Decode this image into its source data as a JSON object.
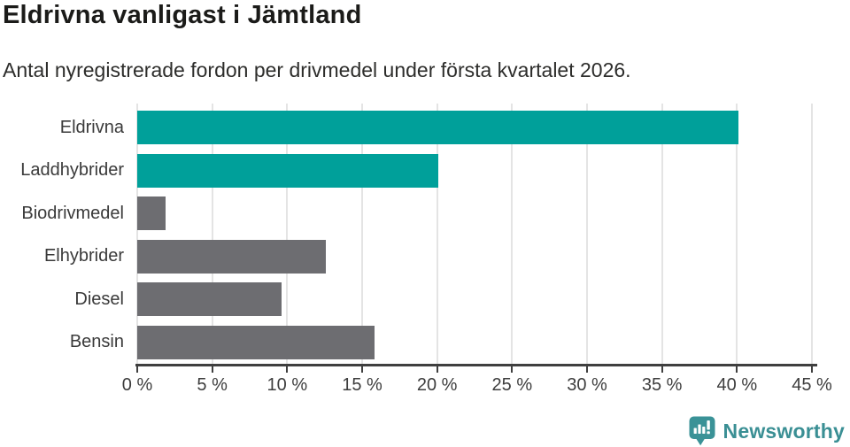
{
  "chart_data": {
    "type": "bar",
    "orientation": "horizontal",
    "title": "Eldrivna vanligast i Jämtland",
    "subtitle": "Antal nyregistrerade fordon per drivmedel under första kvartalet 2026.",
    "categories": [
      "Eldrivna",
      "Laddhybrider",
      "Biodrivmedel",
      "Elhybrider",
      "Diesel",
      "Bensin"
    ],
    "values": [
      40.1,
      20.1,
      1.9,
      12.6,
      9.6,
      15.8
    ],
    "unit": "%",
    "bar_colors": [
      "#00a09a",
      "#00a09a",
      "#6d6d71",
      "#6d6d71",
      "#6d6d71",
      "#6d6d71"
    ],
    "xlim": [
      0,
      45
    ],
    "xticks": [
      0,
      5,
      10,
      15,
      20,
      25,
      30,
      35,
      40,
      45
    ],
    "xtick_labels": [
      "0 %",
      "5 %",
      "10 %",
      "15 %",
      "20 %",
      "25 %",
      "30 %",
      "35 %",
      "40 %",
      "45 %"
    ],
    "grid": true,
    "legend": "none"
  },
  "colors": {
    "accent_teal": "#00a09a",
    "neutral_gray": "#6d6d71",
    "grid_gray": "#e4e4e4",
    "axis_dark": "#3f3f3f",
    "brand_teal": "#3a8f94"
  },
  "footer": {
    "brand": "Newsworthy"
  }
}
